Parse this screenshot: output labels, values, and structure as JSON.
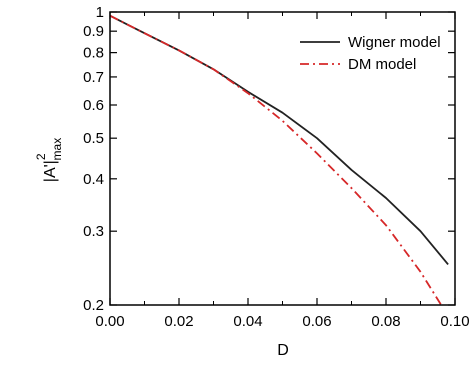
{
  "chart_data": {
    "type": "line",
    "title": "",
    "xlabel": "D",
    "ylabel": "|A'|",
    "ylabel_superscript": "2",
    "ylabel_subscript": "max",
    "xlim": [
      0.0,
      0.1
    ],
    "ylim": [
      0.2,
      1.0
    ],
    "yscale": "log",
    "grid": false,
    "legend_position": "top-right",
    "x_ticks": [
      0.0,
      0.02,
      0.04,
      0.06,
      0.08,
      0.1
    ],
    "x_tick_labels": [
      "0.00",
      "0.02",
      "0.04",
      "0.06",
      "0.08",
      "0.10"
    ],
    "y_ticks": [
      0.2,
      0.3,
      0.4,
      0.5,
      0.6,
      0.7,
      0.8,
      0.9,
      1.0
    ],
    "y_tick_labels": [
      "0.2",
      "0.3",
      "0.4",
      "0.5",
      "0.6",
      "0.7",
      "0.8",
      "0.9",
      "1"
    ],
    "series": [
      {
        "name": "Wigner model",
        "color": "#222222",
        "style": "solid",
        "x": [
          0.0,
          0.01,
          0.02,
          0.03,
          0.04,
          0.05,
          0.06,
          0.07,
          0.08,
          0.09,
          0.098
        ],
        "y": [
          0.98,
          0.89,
          0.81,
          0.73,
          0.645,
          0.575,
          0.5,
          0.42,
          0.36,
          0.3,
          0.25
        ]
      },
      {
        "name": "DM model",
        "color": "#d62728",
        "style": "dashdot",
        "x": [
          0.0,
          0.01,
          0.02,
          0.03,
          0.04,
          0.05,
          0.06,
          0.07,
          0.08,
          0.09,
          0.096
        ],
        "y": [
          0.98,
          0.89,
          0.81,
          0.73,
          0.64,
          0.55,
          0.46,
          0.38,
          0.31,
          0.24,
          0.2
        ]
      }
    ]
  }
}
